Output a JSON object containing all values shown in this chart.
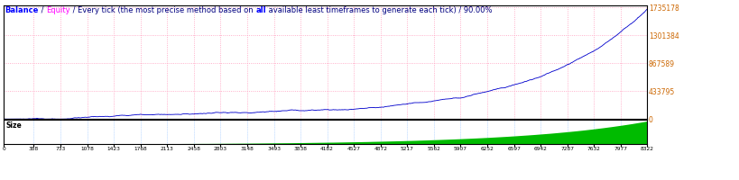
{
  "title_parts": [
    {
      "text": "Balance",
      "color": "#0000FF"
    },
    {
      "text": " / ",
      "color": "#000080"
    },
    {
      "text": "Equity",
      "color": "#FF00FF"
    },
    {
      "text": " / ",
      "color": "#000080"
    },
    {
      "text": "Every tick (the most precise method based on ",
      "color": "#000080"
    },
    {
      "text": "all",
      "color": "#0000FF"
    },
    {
      "text": " available least timeframes to generate each tick) / 90.00%",
      "color": "#000080"
    }
  ],
  "x_ticks": [
    0,
    388,
    733,
    1078,
    1423,
    1768,
    2113,
    2458,
    2803,
    3148,
    3493,
    3838,
    4182,
    4527,
    4872,
    5217,
    5562,
    5907,
    6252,
    6597,
    6942,
    7287,
    7632,
    7977,
    8322
  ],
  "y_ticks_main": [
    0,
    433795,
    867589,
    1301384,
    1735178
  ],
  "y_max_main": 1735178,
  "y_min_main": 0,
  "balance_color": "#0000CC",
  "size_color": "#00BB00",
  "bg_color": "#FFFFFF",
  "grid_color_main": "#FF99BB",
  "grid_color_size": "#88BBFF",
  "grid_style": ":",
  "size_label": "Size",
  "border_color": "#000000",
  "ytick_color": "#CC6600",
  "n_points": 8322,
  "exponent_growth": 5.5,
  "size_exponent": 5.0,
  "title_fontsize": 6.0
}
